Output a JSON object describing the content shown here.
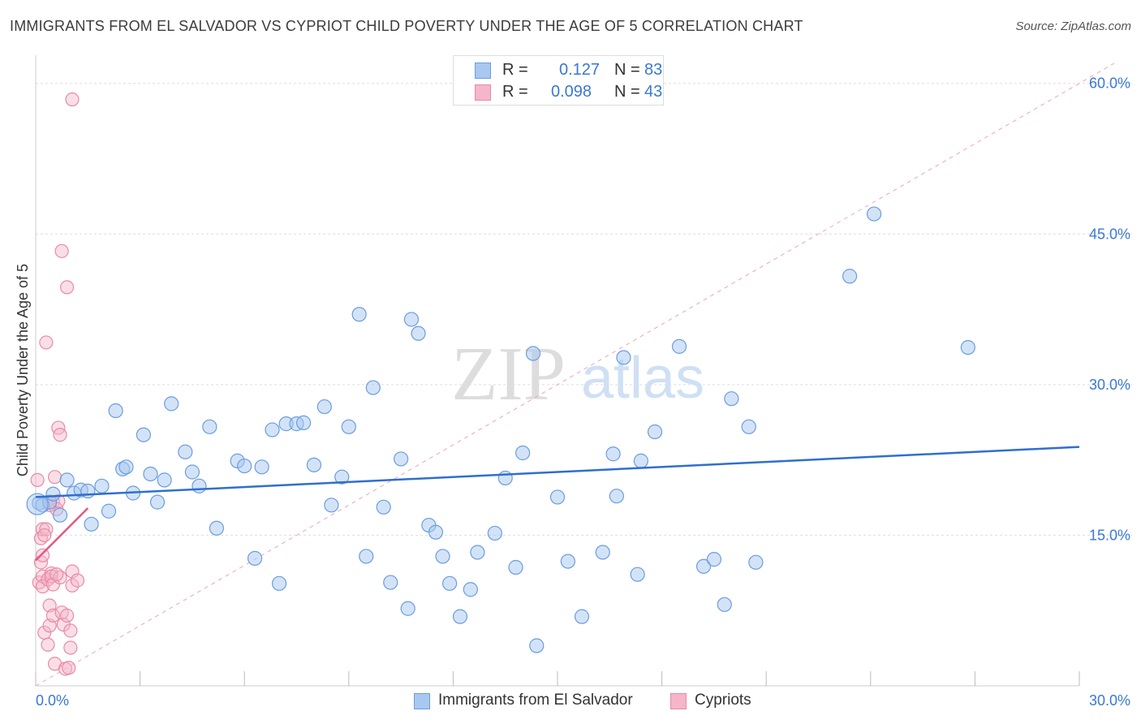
{
  "header": {
    "title": "IMMIGRANTS FROM EL SALVADOR VS CYPRIOT CHILD POVERTY UNDER THE AGE OF 5 CORRELATION CHART",
    "source": "Source: ZipAtlas.com"
  },
  "legend_box": {
    "rows": [
      {
        "r_label": "R =",
        "r_value": "0.127",
        "n_label": "N =",
        "n_value": "83"
      },
      {
        "r_label": "R =",
        "r_value": "0.098",
        "n_label": "N =",
        "n_value": "43"
      }
    ]
  },
  "bottom_legend": [
    "Immigrants from El Salvador",
    "Cypriots"
  ],
  "watermark": {
    "zip": "ZIP",
    "atlas": "atlas"
  },
  "colors": {
    "blue_fill": "#a8c8f0",
    "blue_stroke": "#6a9de0",
    "blue_line": "#2f6fcf",
    "pink_fill": "#f4b6c8",
    "pink_stroke": "#e88aa8",
    "pink_line": "#e05a85",
    "axis_label": "#3a77d6",
    "grid": "#dddddd"
  },
  "chart_data": {
    "type": "scatter",
    "title": "IMMIGRANTS FROM EL SALVADOR VS CYPRIOT CHILD POVERTY UNDER THE AGE OF 5 CORRELATION CHART",
    "xlabel": "",
    "ylabel": "Child Poverty Under the Age of 5",
    "xlim": [
      0,
      30
    ],
    "ylim": [
      0,
      62
    ],
    "x_tick_labels": [
      "0.0%",
      "30.0%"
    ],
    "y_ticks": [
      15,
      30,
      45,
      60
    ],
    "y_tick_labels": [
      "15.0%",
      "30.0%",
      "45.0%",
      "60.0%"
    ],
    "grid": true,
    "legend_placement": "top-center",
    "series": [
      {
        "name": "Immigrants from El Salvador",
        "R": 0.127,
        "N": 83,
        "trend": {
          "x": [
            0,
            30
          ],
          "y": [
            18.8,
            23.8
          ]
        },
        "points": [
          [
            0.1,
            18.2
          ],
          [
            0.2,
            18.0
          ],
          [
            0.4,
            18.3
          ],
          [
            0.5,
            19.1
          ],
          [
            0.7,
            17.0
          ],
          [
            0.9,
            20.5
          ],
          [
            1.1,
            19.2
          ],
          [
            1.3,
            19.5
          ],
          [
            1.5,
            19.4
          ],
          [
            1.6,
            16.1
          ],
          [
            1.9,
            19.9
          ],
          [
            2.1,
            17.4
          ],
          [
            2.3,
            27.4
          ],
          [
            2.5,
            21.6
          ],
          [
            2.6,
            21.8
          ],
          [
            2.8,
            19.2
          ],
          [
            3.1,
            25.0
          ],
          [
            3.3,
            21.1
          ],
          [
            3.5,
            18.3
          ],
          [
            3.7,
            20.5
          ],
          [
            3.9,
            28.1
          ],
          [
            4.3,
            23.3
          ],
          [
            4.5,
            21.3
          ],
          [
            4.7,
            19.9
          ],
          [
            5.0,
            25.8
          ],
          [
            5.2,
            15.7
          ],
          [
            5.8,
            22.4
          ],
          [
            6.0,
            21.9
          ],
          [
            6.3,
            12.7
          ],
          [
            6.5,
            21.8
          ],
          [
            6.8,
            25.5
          ],
          [
            7.0,
            10.2
          ],
          [
            7.2,
            26.1
          ],
          [
            7.5,
            26.1
          ],
          [
            7.7,
            26.2
          ],
          [
            8.0,
            22.0
          ],
          [
            8.3,
            27.8
          ],
          [
            8.5,
            18.0
          ],
          [
            8.8,
            20.8
          ],
          [
            9.0,
            25.8
          ],
          [
            9.3,
            37.0
          ],
          [
            9.5,
            12.9
          ],
          [
            9.7,
            29.7
          ],
          [
            10.0,
            17.8
          ],
          [
            10.2,
            10.3
          ],
          [
            10.5,
            22.6
          ],
          [
            10.7,
            7.7
          ],
          [
            10.8,
            36.5
          ],
          [
            11.0,
            35.1
          ],
          [
            11.3,
            16.0
          ],
          [
            11.5,
            15.3
          ],
          [
            11.7,
            12.9
          ],
          [
            11.9,
            10.2
          ],
          [
            12.2,
            6.9
          ],
          [
            12.5,
            9.6
          ],
          [
            12.7,
            13.3
          ],
          [
            13.2,
            15.2
          ],
          [
            13.5,
            20.7
          ],
          [
            13.8,
            11.8
          ],
          [
            14.0,
            23.2
          ],
          [
            14.3,
            33.1
          ],
          [
            14.4,
            4.0
          ],
          [
            15.0,
            18.8
          ],
          [
            15.3,
            12.4
          ],
          [
            15.7,
            6.9
          ],
          [
            16.3,
            13.3
          ],
          [
            16.6,
            23.1
          ],
          [
            16.7,
            18.9
          ],
          [
            16.9,
            32.7
          ],
          [
            17.3,
            11.1
          ],
          [
            17.4,
            22.4
          ],
          [
            17.8,
            25.3
          ],
          [
            18.5,
            33.8
          ],
          [
            19.2,
            11.9
          ],
          [
            19.5,
            12.6
          ],
          [
            19.8,
            8.1
          ],
          [
            20.0,
            28.6
          ],
          [
            20.5,
            25.8
          ],
          [
            20.7,
            12.3
          ],
          [
            23.4,
            40.8
          ],
          [
            24.1,
            47.0
          ],
          [
            26.8,
            33.7
          ],
          [
            0.05,
            18.1
          ]
        ]
      },
      {
        "name": "Cypriots",
        "R": 0.098,
        "N": 43,
        "trend": {
          "x": [
            0,
            1.5
          ],
          "y": [
            12.5,
            17.7
          ]
        },
        "points": [
          [
            0.05,
            20.5
          ],
          [
            0.1,
            10.3
          ],
          [
            0.15,
            14.7
          ],
          [
            0.15,
            12.3
          ],
          [
            0.2,
            15.6
          ],
          [
            0.2,
            13.0
          ],
          [
            0.2,
            10.9
          ],
          [
            0.2,
            9.9
          ],
          [
            0.25,
            5.3
          ],
          [
            0.3,
            15.6
          ],
          [
            0.3,
            34.2
          ],
          [
            0.35,
            10.6
          ],
          [
            0.35,
            4.1
          ],
          [
            0.4,
            8.0
          ],
          [
            0.4,
            6.0
          ],
          [
            0.45,
            11.2
          ],
          [
            0.45,
            10.9
          ],
          [
            0.5,
            18.3
          ],
          [
            0.5,
            10.1
          ],
          [
            0.5,
            7.0
          ],
          [
            0.55,
            2.2
          ],
          [
            0.55,
            20.8
          ],
          [
            0.6,
            17.6
          ],
          [
            0.65,
            18.4
          ],
          [
            0.65,
            25.7
          ],
          [
            0.7,
            25.0
          ],
          [
            0.7,
            10.8
          ],
          [
            0.75,
            7.3
          ],
          [
            0.75,
            43.3
          ],
          [
            0.8,
            6.1
          ],
          [
            0.85,
            1.7
          ],
          [
            0.9,
            7.0
          ],
          [
            0.9,
            39.7
          ],
          [
            0.95,
            1.8
          ],
          [
            1.0,
            3.8
          ],
          [
            1.0,
            5.5
          ],
          [
            1.05,
            10.0
          ],
          [
            1.05,
            11.4
          ],
          [
            1.05,
            58.4
          ],
          [
            1.2,
            10.5
          ],
          [
            0.4,
            18.0
          ],
          [
            0.6,
            11.1
          ],
          [
            0.25,
            15.0
          ]
        ]
      }
    ]
  }
}
